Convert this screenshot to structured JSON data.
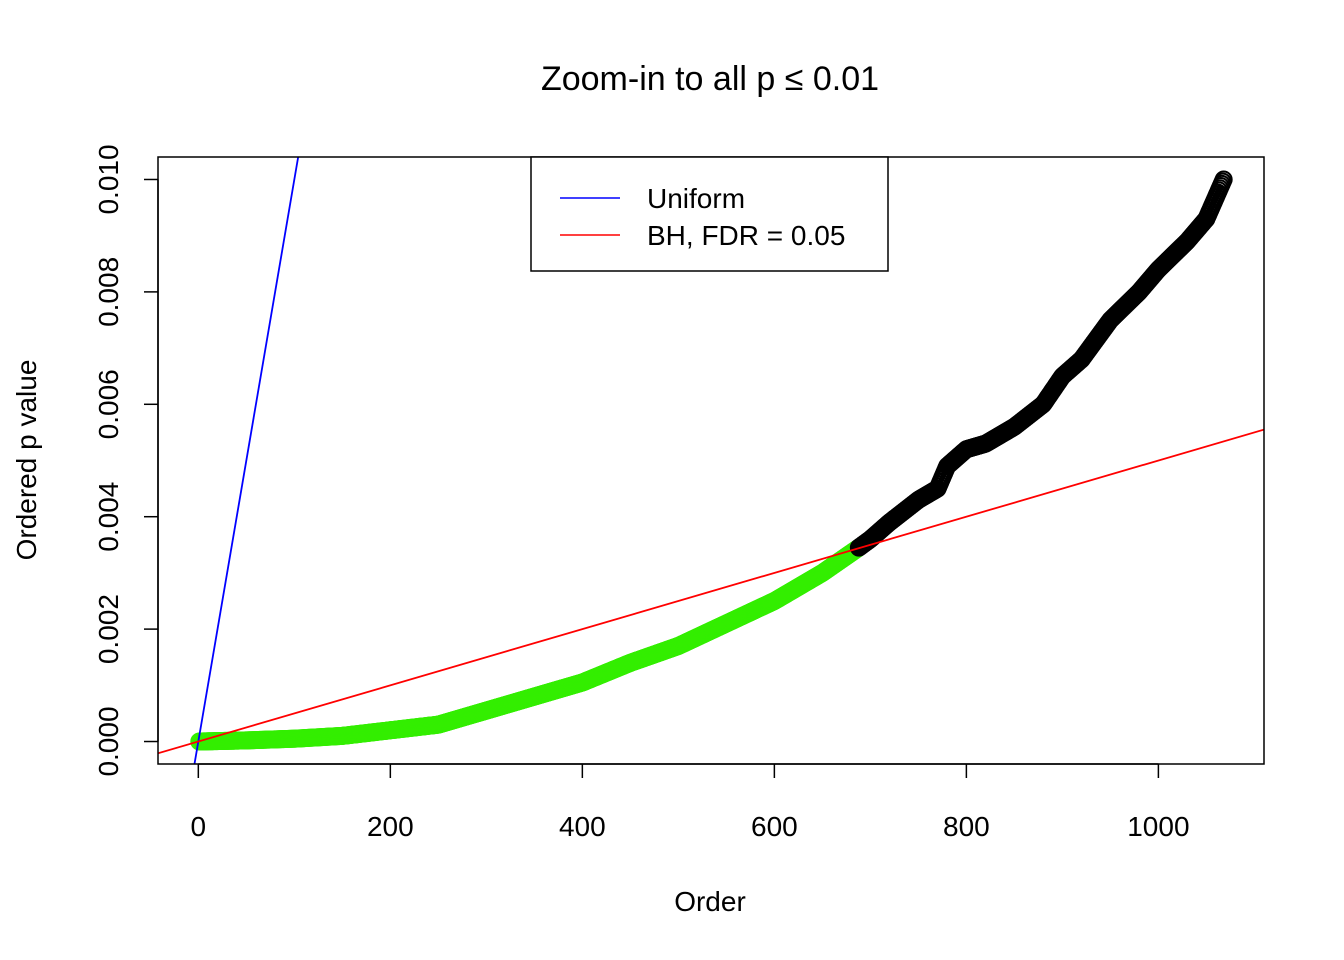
{
  "chart_data": {
    "type": "scatter",
    "title": "Zoom-in to all p ≤ 0.01",
    "xlabel": "Order",
    "ylabel": "Ordered p value",
    "xlim": [
      -42,
      1110
    ],
    "ylim": [
      -0.0004,
      0.0104
    ],
    "xticks": [
      0,
      200,
      400,
      600,
      800,
      1000
    ],
    "xtick_labels": [
      "0",
      "200",
      "400",
      "600",
      "800",
      "1000"
    ],
    "yticks": [
      0,
      0.002,
      0.004,
      0.006,
      0.008,
      0.01
    ],
    "ytick_labels": [
      "0.000",
      "0.002",
      "0.004",
      "0.006",
      "0.008",
      "0.010"
    ],
    "grid": false,
    "legend_position": "top-center",
    "legend": [
      {
        "label": "Uniform",
        "color": "#0000ff"
      },
      {
        "label": "BH, FDR = 0.05",
        "color": "#ff0000"
      }
    ],
    "reference_lines": [
      {
        "name": "Uniform",
        "color": "#0000ff",
        "slope": 0.0001,
        "intercept": 0
      },
      {
        "name": "BH, FDR = 0.05",
        "color": "#ff0000",
        "slope": 5e-06,
        "intercept": 0
      }
    ],
    "series": [
      {
        "color": "#33ee00",
        "marker": "open-circle",
        "x": [
          1,
          50,
          100,
          150,
          200,
          250,
          300,
          350,
          400,
          450,
          500,
          550,
          600,
          650,
          688
        ],
        "y": [
          0.0,
          2e-05,
          5e-05,
          0.0001,
          0.0002,
          0.0003,
          0.00055,
          0.0008,
          0.00105,
          0.0014,
          0.0017,
          0.0021,
          0.0025,
          0.003,
          0.00345
        ]
      },
      {
        "color": "#000000",
        "marker": "open-circle",
        "x": [
          688,
          700,
          720,
          750,
          770,
          780,
          800,
          820,
          850,
          880,
          900,
          920,
          950,
          980,
          1000,
          1030,
          1050,
          1068
        ],
        "y": [
          0.00345,
          0.0036,
          0.0039,
          0.0043,
          0.0045,
          0.0049,
          0.0052,
          0.0053,
          0.0056,
          0.006,
          0.0065,
          0.0068,
          0.0075,
          0.008,
          0.0084,
          0.0089,
          0.0093,
          0.01
        ]
      }
    ]
  }
}
